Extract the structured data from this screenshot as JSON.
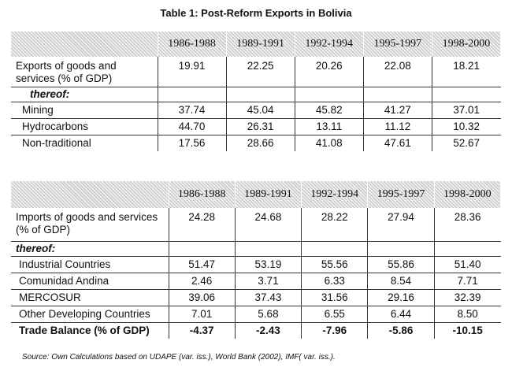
{
  "title": "Table 1: Post-Reform Exports in Bolivia",
  "years": [
    "1986-1988",
    "1989-1991",
    "1992-1994",
    "1995-1997",
    "1998-2000"
  ],
  "exports": {
    "main_label": "Exports of goods and services (% of GDP)",
    "main_values": [
      "19.91",
      "22.25",
      "20.26",
      "22.08",
      "18.21"
    ],
    "thereof_label": "thereof:",
    "rows": [
      {
        "label": "Mining",
        "values": [
          "37.74",
          "45.04",
          "45.82",
          "41.27",
          "37.01"
        ]
      },
      {
        "label": "Hydrocarbons",
        "values": [
          "44.70",
          "26.31",
          "13.11",
          "11.12",
          "10.32"
        ]
      },
      {
        "label": "Non-traditional",
        "values": [
          "17.56",
          "28.66",
          "41.08",
          "47.61",
          "52.67"
        ]
      }
    ]
  },
  "imports": {
    "main_label": "Imports of goods and services (% of GDP)",
    "main_values": [
      "24.28",
      "24.68",
      "28.22",
      "27.94",
      "28.36"
    ],
    "thereof_label": "thereof:",
    "rows": [
      {
        "label": "Industrial Countries",
        "values": [
          "51.47",
          "53.19",
          "55.56",
          "55.86",
          "51.40"
        ]
      },
      {
        "label": "Comunidad Andina",
        "values": [
          "2.46",
          "3.71",
          "6.33",
          "8.54",
          "7.71"
        ]
      },
      {
        "label": "MERCOSUR",
        "values": [
          "39.06",
          "37.43",
          "31.56",
          "29.16",
          "32.39"
        ]
      },
      {
        "label": "Other Developing Countries",
        "values": [
          "7.01",
          "5.68",
          "6.55",
          "6.44",
          "8.50"
        ]
      }
    ],
    "balance": {
      "label": "Trade Balance (% of GDP)",
      "values": [
        "-4.37",
        "-2.43",
        "-7.96",
        "-5.86",
        "-10.15"
      ]
    }
  },
  "source": "Source: Own Calculations based on UDAPE (var. iss.), World Bank (2002), IMF( var. iss.)."
}
